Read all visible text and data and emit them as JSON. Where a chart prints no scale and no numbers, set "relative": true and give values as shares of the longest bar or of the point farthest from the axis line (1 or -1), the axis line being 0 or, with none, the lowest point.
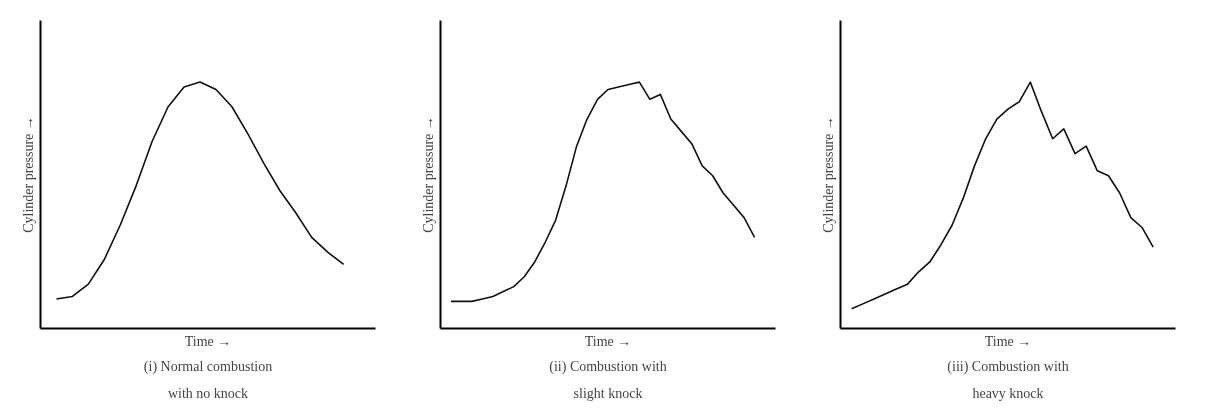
{
  "chart_data": [
    {
      "type": "line",
      "relative": true,
      "xlabel": "Time →",
      "ylabel": "Cylinder pressure →",
      "annotations": [
        "(i) Normal combustion with no knock"
      ],
      "line_style": "solid",
      "categories": [
        null,
        null,
        null,
        null,
        null,
        null,
        null,
        null,
        null,
        null,
        null,
        null,
        null,
        null,
        null,
        null,
        null,
        null,
        null
      ],
      "series": [
        {
          "color": "#111111",
          "values": [
            0.12,
            0.13,
            0.18,
            0.28,
            0.42,
            0.58,
            0.76,
            0.9,
            0.98,
            1,
            0.97,
            0.9,
            0.79,
            0.67,
            0.56,
            0.47,
            0.37,
            0.31,
            0.26
          ]
        }
      ]
    },
    {
      "type": "line",
      "relative": true,
      "xlabel": "Time →",
      "ylabel": "Cylinder pressure →",
      "annotations": [
        "(ii) Combustion with slight knock"
      ],
      "line_style": "solid",
      "categories": [
        null,
        null,
        null,
        null,
        null,
        null,
        null,
        null,
        null,
        null,
        null,
        null,
        null,
        null,
        null,
        null,
        null,
        null,
        null,
        null,
        null,
        null,
        null,
        null,
        null,
        null,
        null,
        null,
        null,
        null
      ],
      "series": [
        {
          "color": "#111111",
          "values": [
            0.11,
            0.11,
            0.11,
            0.12,
            0.13,
            0.15,
            0.17,
            0.21,
            0.27,
            0.35,
            0.44,
            0.58,
            0.74,
            0.85,
            0.93,
            0.97,
            0.98,
            0.99,
            1,
            0.93,
            0.95,
            0.85,
            0.8,
            0.75,
            0.66,
            0.62,
            0.55,
            0.5,
            0.45,
            0.37
          ]
        }
      ]
    },
    {
      "type": "line",
      "relative": true,
      "xlabel": "Time →",
      "ylabel": "Cylinder pressure →",
      "annotations": [
        "(iii) Combustion with heavy knock"
      ],
      "line_style": "solid",
      "categories": [
        null,
        null,
        null,
        null,
        null,
        null,
        null,
        null,
        null,
        null,
        null,
        null,
        null,
        null,
        null,
        null,
        null,
        null,
        null,
        null,
        null,
        null,
        null,
        null,
        null,
        null,
        null,
        null
      ],
      "series": [
        {
          "color": "#111111",
          "values": [
            0.08,
            0.1,
            0.12,
            0.14,
            0.16,
            0.18,
            0.23,
            0.27,
            0.34,
            0.42,
            0.53,
            0.66,
            0.77,
            0.85,
            0.89,
            0.92,
            1,
            0.88,
            0.77,
            0.81,
            0.71,
            0.74,
            0.64,
            0.62,
            0.55,
            0.45,
            0.41,
            0.33
          ]
        }
      ]
    }
  ]
}
